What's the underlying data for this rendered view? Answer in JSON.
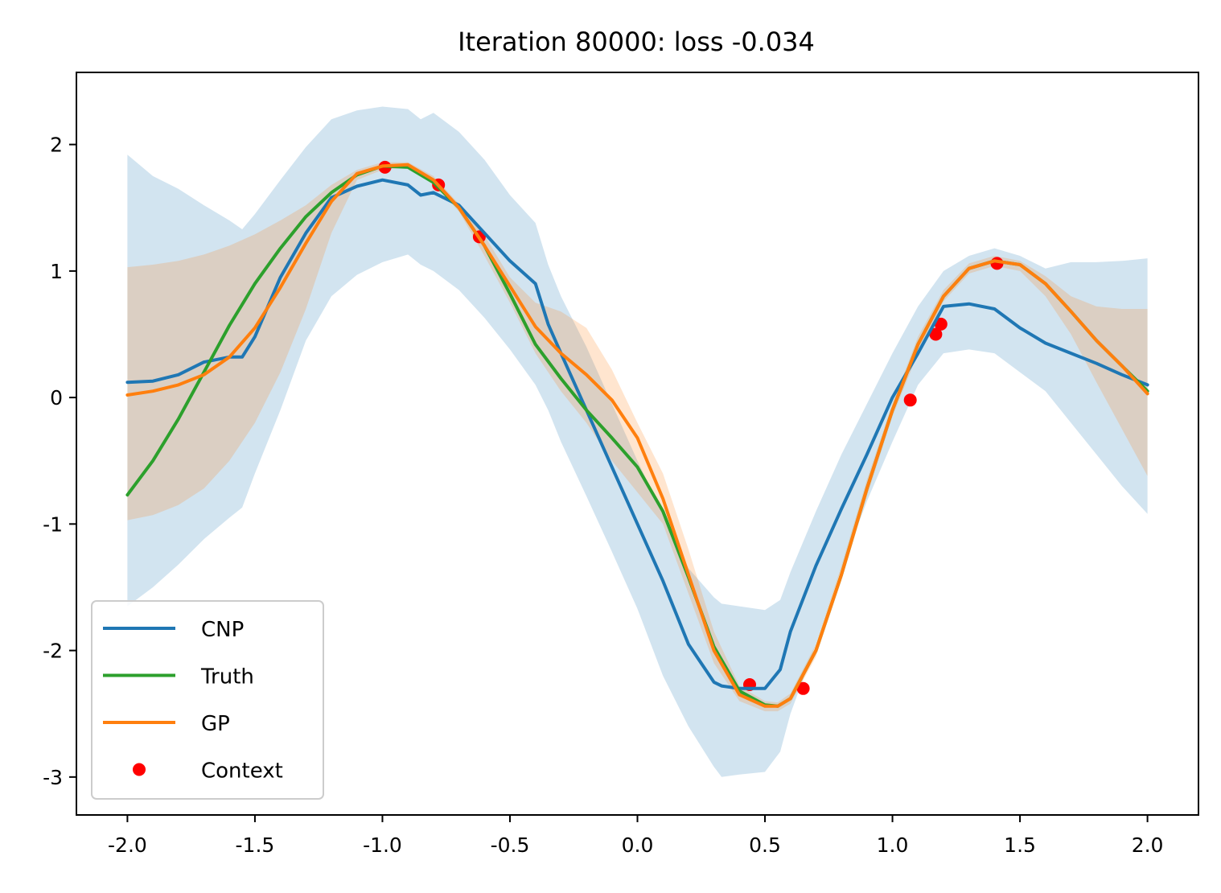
{
  "chart_data": {
    "type": "line",
    "title": "Iteration 80000: loss -0.034",
    "xlabel": "",
    "ylabel": "",
    "xlim": [
      -2.2,
      2.2
    ],
    "ylim": [
      -3.3,
      2.57
    ],
    "xticks": [
      -2.0,
      -1.5,
      -1.0,
      -0.5,
      0.0,
      0.5,
      1.0,
      1.5,
      2.0
    ],
    "xtick_labels": [
      "-2.0",
      "-1.5",
      "-1.0",
      "-0.5",
      "0.0",
      "0.5",
      "1.0",
      "1.5",
      "2.0"
    ],
    "yticks": [
      2,
      1,
      0,
      -1,
      -2,
      -3
    ],
    "ytick_labels": [
      "2",
      "1",
      "0",
      "-1",
      "-2",
      "-3"
    ],
    "grid": false,
    "legend_position": "lower-left",
    "series": [
      {
        "name": "CNP",
        "color": "#1f77b4",
        "x": [
          -2.0,
          -1.9,
          -1.8,
          -1.7,
          -1.6,
          -1.55,
          -1.5,
          -1.4,
          -1.3,
          -1.2,
          -1.1,
          -1.0,
          -0.9,
          -0.85,
          -0.8,
          -0.7,
          -0.6,
          -0.5,
          -0.4,
          -0.35,
          -0.3,
          -0.2,
          -0.1,
          0.0,
          0.1,
          0.2,
          0.3,
          0.33,
          0.4,
          0.5,
          0.56,
          0.6,
          0.7,
          0.8,
          0.9,
          1.0,
          1.1,
          1.2,
          1.3,
          1.4,
          1.5,
          1.6,
          1.7,
          1.8,
          1.9,
          2.0
        ],
        "y": [
          0.12,
          0.13,
          0.18,
          0.28,
          0.32,
          0.32,
          0.48,
          0.95,
          1.3,
          1.58,
          1.67,
          1.72,
          1.68,
          1.6,
          1.62,
          1.52,
          1.3,
          1.08,
          0.9,
          0.58,
          0.35,
          -0.1,
          -0.55,
          -1.0,
          -1.45,
          -1.95,
          -2.25,
          -2.28,
          -2.3,
          -2.3,
          -2.15,
          -1.85,
          -1.33,
          -0.88,
          -0.45,
          0.0,
          0.35,
          0.72,
          0.74,
          0.7,
          0.55,
          0.43,
          0.35,
          0.27,
          0.18,
          0.1
        ]
      },
      {
        "name": "Truth",
        "color": "#2ca02c",
        "x": [
          -2.0,
          -1.9,
          -1.8,
          -1.7,
          -1.6,
          -1.5,
          -1.4,
          -1.3,
          -1.2,
          -1.1,
          -1.0,
          -0.9,
          -0.8,
          -0.7,
          -0.6,
          -0.5,
          -0.4,
          -0.3,
          -0.2,
          -0.1,
          0.0,
          0.1,
          0.2,
          0.3,
          0.4,
          0.5,
          0.55,
          0.6,
          0.7,
          0.8,
          0.9,
          1.0,
          1.1,
          1.2,
          1.3,
          1.4,
          1.5,
          1.6,
          1.7,
          1.8,
          1.9,
          2.0
        ],
        "y": [
          -0.77,
          -0.5,
          -0.17,
          0.2,
          0.57,
          0.9,
          1.18,
          1.43,
          1.62,
          1.76,
          1.83,
          1.82,
          1.7,
          1.5,
          1.2,
          0.82,
          0.42,
          0.15,
          -0.1,
          -0.32,
          -0.55,
          -0.9,
          -1.42,
          -1.97,
          -2.32,
          -2.43,
          -2.44,
          -2.38,
          -2.0,
          -1.4,
          -0.72,
          -0.1,
          0.42,
          0.8,
          1.02,
          1.08,
          1.05,
          0.9,
          0.68,
          0.45,
          0.25,
          0.05
        ]
      },
      {
        "name": "GP",
        "color": "#ff7f0e",
        "x": [
          -2.0,
          -1.9,
          -1.8,
          -1.7,
          -1.6,
          -1.5,
          -1.4,
          -1.3,
          -1.2,
          -1.1,
          -1.0,
          -0.9,
          -0.8,
          -0.7,
          -0.6,
          -0.5,
          -0.4,
          -0.3,
          -0.2,
          -0.1,
          0.0,
          0.1,
          0.2,
          0.3,
          0.4,
          0.5,
          0.55,
          0.6,
          0.7,
          0.8,
          0.9,
          1.0,
          1.1,
          1.2,
          1.3,
          1.4,
          1.5,
          1.6,
          1.7,
          1.8,
          1.9,
          2.0
        ],
        "y": [
          0.02,
          0.05,
          0.1,
          0.18,
          0.32,
          0.55,
          0.87,
          1.22,
          1.55,
          1.77,
          1.83,
          1.84,
          1.72,
          1.5,
          1.2,
          0.88,
          0.56,
          0.35,
          0.18,
          -0.02,
          -0.32,
          -0.8,
          -1.4,
          -2.0,
          -2.35,
          -2.44,
          -2.44,
          -2.38,
          -2.0,
          -1.4,
          -0.72,
          -0.1,
          0.42,
          0.8,
          1.02,
          1.08,
          1.05,
          0.9,
          0.68,
          0.45,
          0.25,
          0.03
        ]
      }
    ],
    "bands": [
      {
        "of": "CNP",
        "color": "#1f77b4",
        "opacity": 0.2,
        "x": [
          -2.0,
          -1.9,
          -1.8,
          -1.7,
          -1.6,
          -1.55,
          -1.5,
          -1.4,
          -1.3,
          -1.2,
          -1.1,
          -1.0,
          -0.9,
          -0.85,
          -0.8,
          -0.7,
          -0.6,
          -0.5,
          -0.4,
          -0.35,
          -0.3,
          -0.2,
          -0.1,
          0.0,
          0.1,
          0.2,
          0.3,
          0.33,
          0.4,
          0.5,
          0.56,
          0.6,
          0.7,
          0.8,
          0.9,
          1.0,
          1.1,
          1.2,
          1.3,
          1.4,
          1.5,
          1.6,
          1.7,
          1.8,
          1.9,
          2.0
        ],
        "upper": [
          1.92,
          1.75,
          1.65,
          1.52,
          1.4,
          1.33,
          1.45,
          1.72,
          1.98,
          2.2,
          2.27,
          2.3,
          2.28,
          2.2,
          2.25,
          2.1,
          1.88,
          1.6,
          1.38,
          1.05,
          0.8,
          0.4,
          -0.05,
          -0.5,
          -0.92,
          -1.35,
          -1.58,
          -1.63,
          -1.65,
          -1.68,
          -1.6,
          -1.38,
          -0.9,
          -0.45,
          -0.05,
          0.35,
          0.72,
          1.0,
          1.12,
          1.18,
          1.12,
          1.02,
          1.07,
          1.07,
          1.08,
          1.1
        ]
      }
    ],
    "bands_lower": [
      {
        "of": "CNP",
        "lower": [
          -1.65,
          -1.5,
          -1.32,
          -1.12,
          -0.95,
          -0.87,
          -0.6,
          -0.1,
          0.45,
          0.8,
          0.97,
          1.07,
          1.13,
          1.05,
          1.0,
          0.85,
          0.63,
          0.38,
          0.1,
          -0.1,
          -0.35,
          -0.78,
          -1.22,
          -1.67,
          -2.2,
          -2.6,
          -2.92,
          -3.0,
          -2.98,
          -2.96,
          -2.8,
          -2.5,
          -1.95,
          -1.35,
          -0.82,
          -0.35,
          0.1,
          0.35,
          0.38,
          0.35,
          0.2,
          0.05,
          -0.2,
          -0.45,
          -0.7,
          -0.92
        ]
      }
    ],
    "gp_band": {
      "of": "GP",
      "color": "#ff7f0e",
      "opacity": 0.2,
      "x": [
        -2.0,
        -1.9,
        -1.8,
        -1.7,
        -1.6,
        -1.5,
        -1.4,
        -1.3,
        -1.2,
        -1.1,
        -1.0,
        -0.9,
        -0.8,
        -0.7,
        -0.6,
        -0.5,
        -0.4,
        -0.3,
        -0.2,
        -0.1,
        0.0,
        0.1,
        0.2,
        0.3,
        0.4,
        0.5,
        0.55,
        0.6,
        0.7,
        0.8,
        0.9,
        1.0,
        1.1,
        1.2,
        1.3,
        1.4,
        1.5,
        1.6,
        1.7,
        1.8,
        1.9,
        2.0
      ],
      "upper": [
        1.03,
        1.05,
        1.08,
        1.13,
        1.2,
        1.29,
        1.4,
        1.52,
        1.68,
        1.8,
        1.86,
        1.86,
        1.75,
        1.53,
        1.28,
        0.95,
        0.75,
        0.68,
        0.55,
        0.22,
        -0.2,
        -0.6,
        -1.2,
        -1.85,
        -2.28,
        -2.4,
        -2.41,
        -2.34,
        -1.95,
        -1.33,
        -0.65,
        -0.05,
        0.48,
        0.85,
        1.06,
        1.12,
        1.08,
        0.96,
        0.8,
        0.72,
        0.7,
        0.7
      ],
      "lower": [
        -0.97,
        -0.93,
        -0.85,
        -0.72,
        -0.5,
        -0.2,
        0.2,
        0.7,
        1.3,
        1.72,
        1.8,
        1.82,
        1.69,
        1.47,
        1.12,
        0.75,
        0.35,
        0.05,
        -0.2,
        -0.5,
        -0.75,
        -1.0,
        -1.55,
        -2.1,
        -2.4,
        -2.48,
        -2.48,
        -2.42,
        -2.05,
        -1.45,
        -0.78,
        -0.15,
        0.35,
        0.76,
        0.98,
        1.04,
        1.0,
        0.8,
        0.5,
        0.12,
        -0.25,
        -0.62
      ]
    },
    "context": {
      "name": "Context",
      "color": "#ff0000",
      "x": [
        -0.99,
        -0.78,
        -0.62,
        0.44,
        0.65,
        1.07,
        1.17,
        1.19,
        1.41
      ],
      "y": [
        1.82,
        1.68,
        1.27,
        -2.27,
        -2.3,
        -0.02,
        0.5,
        0.58,
        1.06
      ]
    }
  }
}
